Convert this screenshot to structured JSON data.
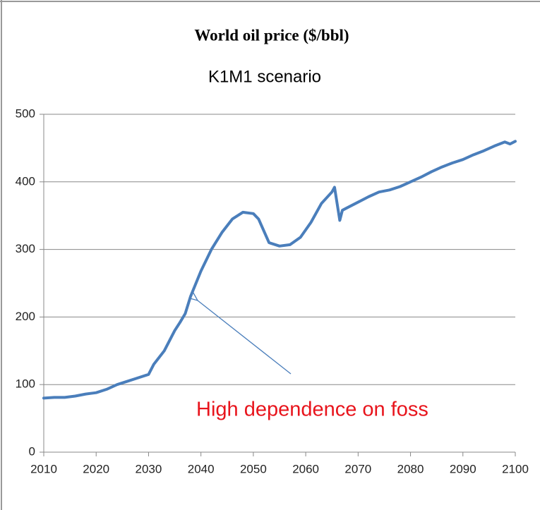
{
  "chart_data": {
    "type": "line",
    "title": "World oil price ($/bbl)",
    "subtitle": "K1M1 scenario",
    "annotation": "High dependence on foss",
    "x": [
      2010,
      2012,
      2014,
      2016,
      2018,
      2020,
      2022,
      2024,
      2026,
      2028,
      2030,
      2031,
      2033,
      2035,
      2036,
      2037,
      2038,
      2040,
      2042,
      2044,
      2046,
      2048,
      2050,
      2051,
      2053,
      2055,
      2057,
      2059,
      2061,
      2063,
      2065,
      2065.5,
      2066.5,
      2067,
      2068,
      2070,
      2072,
      2074,
      2076,
      2078,
      2080,
      2082,
      2084,
      2086,
      2088,
      2090,
      2092,
      2094,
      2096,
      2098,
      2099,
      2100
    ],
    "series": [
      {
        "name": "World oil price",
        "color": "#4a7ebb",
        "values": [
          80,
          81,
          81,
          83,
          86,
          88,
          93,
          100,
          105,
          110,
          115,
          130,
          150,
          180,
          192,
          205,
          230,
          268,
          300,
          325,
          345,
          355,
          353,
          345,
          310,
          305,
          307,
          318,
          340,
          368,
          385,
          392,
          343,
          358,
          362,
          370,
          378,
          385,
          388,
          393,
          400,
          407,
          415,
          422,
          428,
          433,
          440,
          446,
          453,
          459,
          456,
          460
        ]
      }
    ],
    "xlim": [
      2010,
      2100
    ],
    "ylim": [
      0,
      500
    ],
    "xticks": [
      2010,
      2020,
      2030,
      2040,
      2050,
      2060,
      2070,
      2080,
      2090,
      2100
    ],
    "yticks": [
      0,
      100,
      200,
      300,
      400,
      500
    ],
    "grid": true
  }
}
